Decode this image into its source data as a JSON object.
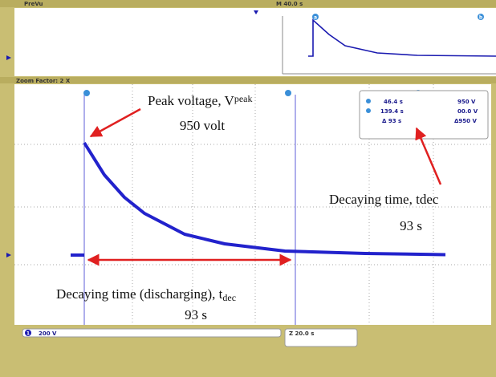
{
  "header": {
    "preview_label": "PreVu",
    "timebase": "M 40.0 s",
    "zoom": "Zoom Factor: 2 X"
  },
  "markers": {
    "a": "a",
    "b": "b",
    "channel": "1"
  },
  "readout": {
    "rows": [
      [
        "46.4 s",
        "950 V"
      ],
      [
        "139.4 s",
        "00.0 V"
      ],
      [
        "Δ 93 s",
        "Δ950 V"
      ]
    ]
  },
  "annotations": {
    "peak": {
      "text": "Peak voltage, V",
      "sub": "peak",
      "value": "950 volt"
    },
    "decay_right": {
      "text": "Decaying time, tdec",
      "value": "93 s"
    },
    "decay_bottom": {
      "text": "Decaying time (discharging), t",
      "sub": "dec",
      "value": "93 s"
    }
  },
  "footer": {
    "channel_scale": "200 V",
    "zoom_time": "Z 20.0 s"
  }
}
